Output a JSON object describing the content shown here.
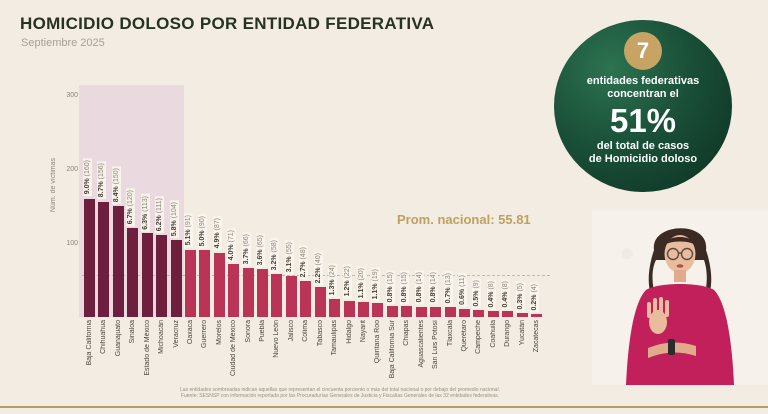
{
  "header": {
    "title": "HOMICIDIO DOLOSO POR ENTIDAD FEDERATIVA",
    "subtitle": "Septiembre 2025"
  },
  "badge": {
    "number": "7",
    "line1": "entidades federativas",
    "line2": "concentran el",
    "big": "51%",
    "line3": "del total de casos",
    "line4": "de Homicidio doloso"
  },
  "chart_data": {
    "type": "bar",
    "ylabel": "Núm. de víctimas",
    "yticks": [
      100,
      200,
      300
    ],
    "ylim": [
      0,
      313
    ],
    "national_average": 55.81,
    "average_label": "Prom. nacional: 55.81",
    "highlighted_count": 7,
    "highlight_note": "first 7 bars shaded dark over pink band",
    "categories": [
      "Baja California",
      "Chihuahua",
      "Guanajuato",
      "Sinaloa",
      "Estado de México",
      "Michoacán",
      "Veracruz",
      "Oaxaca",
      "Guerrero",
      "Morelos",
      "Ciudad de México",
      "Sonora",
      "Puebla",
      "Nuevo León",
      "Jalisco",
      "Colima",
      "Tabasco",
      "Tamaulipas",
      "Hidalgo",
      "Nayarit",
      "Quintana Roo",
      "Baja California Sur",
      "Chiapas",
      "Aguascalientes",
      "San Luis Potosí",
      "Tlaxcala",
      "Querétaro",
      "Campeche",
      "Coahuila",
      "Durango",
      "Yucatán",
      "Zacatecas"
    ],
    "values": [
      160,
      156,
      150,
      120,
      113,
      111,
      104,
      91,
      90,
      87,
      71,
      66,
      65,
      58,
      55,
      48,
      40,
      24,
      22,
      20,
      19,
      15,
      15,
      14,
      14,
      13,
      11,
      9,
      8,
      8,
      5,
      4
    ],
    "pct_labels": [
      "9.0%",
      "8.7%",
      "8.4%",
      "6.7%",
      "6.3%",
      "6.2%",
      "5.8%",
      "5.1%",
      "5.0%",
      "4.9%",
      "4.0%",
      "3.7%",
      "3.6%",
      "3.2%",
      "3.1%",
      "2.7%",
      "2.2%",
      "1.3%",
      "1.2%",
      "1.1%",
      "1.1%",
      "0.8%",
      "0.8%",
      "0.8%",
      "0.8%",
      "0.7%",
      "0.6%",
      "0.5%",
      "0.4%",
      "0.4%",
      "0.3%",
      "0.2%"
    ]
  },
  "footer": {
    "line1": "Las entidades sombreadas indican aquellas que representan el cincuenta porciento o más del total nacional o por debajo del promedio nacional.",
    "line2": "Fuente: SESNSP con información reportada por las Procuradurías Generales de Justicia y Fiscalías Generales de las 32 entidades federativas."
  },
  "colors": {
    "background": "#f2ece3",
    "bar_dark": "#6e1f3d",
    "bar_light": "#ba3458",
    "highlight_band": "#ead9de",
    "accent_gold": "#bfa15f",
    "badge_green_dark": "#0f3827",
    "badge_green_light": "#2c7350",
    "badge_number_circle": "#c7a463"
  }
}
